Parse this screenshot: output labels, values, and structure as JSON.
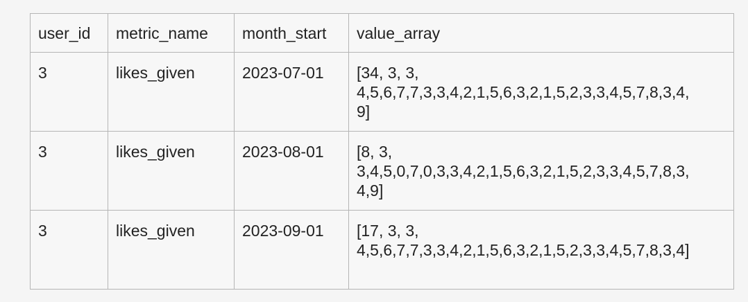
{
  "table": {
    "headers": [
      "user_id",
      "metric_name",
      "month_start",
      "value_array"
    ],
    "rows": [
      {
        "user_id": "3",
        "metric_name": "likes_given",
        "month_start": "2023-07-01",
        "value_array": "[34, 3, 3,\n4,5,6,7,7,3,3,4,2,1,5,6,3,2,1,5,2,3,3,4,5,7,8,3,4,\n9]"
      },
      {
        "user_id": "3",
        "metric_name": "likes_given",
        "month_start": "2023-08-01",
        "value_array": "[8, 3,\n3,4,5,0,7,0,3,3,4,2,1,5,6,3,2,1,5,2,3,3,4,5,7,8,3,\n4,9]"
      },
      {
        "user_id": "3",
        "metric_name": "likes_given",
        "month_start": "2023-09-01",
        "value_array": "[17, 3, 3,\n4,5,6,7,7,3,3,4,2,1,5,6,3,2,1,5,2,3,3,4,5,7,8,3,4]"
      }
    ]
  }
}
